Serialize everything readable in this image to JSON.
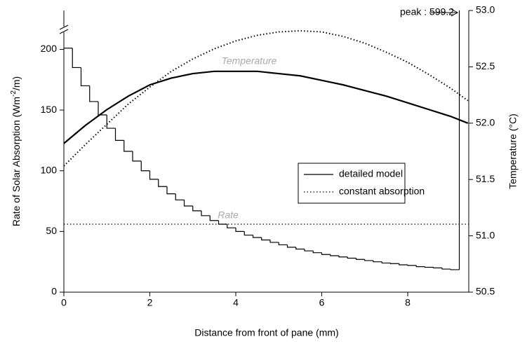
{
  "chart_data": {
    "type": "line",
    "xlabel": "Distance from front of pane (mm)",
    "ylabel": {
      "text": "Rate of Solar Absorption (Wm",
      "sup": "-2",
      "end": "/m)"
    },
    "y2label": "Temperature (°C)",
    "xlim": [
      0,
      9.42
    ],
    "xticks": [
      0,
      2,
      4,
      6,
      8
    ],
    "ylim": [
      0,
      232
    ],
    "yticks": [
      0,
      50,
      100,
      150,
      200
    ],
    "y2lim": [
      50.5,
      53
    ],
    "y2ticks": [
      50.5,
      {
        "value": 51,
        "label": "51.0"
      },
      51.5,
      {
        "value": 52,
        "label": "52.0"
      },
      52.5,
      {
        "value": 53,
        "label": "53.0"
      }
    ],
    "color": "#000000",
    "series": [
      {
        "name": "detailed model",
        "dash": "solid",
        "rate": {
          "bins": [
            0,
            0.2,
            0.4,
            0.6,
            0.8,
            1,
            1.2,
            1.4,
            1.6,
            1.8,
            2,
            2.2,
            2.4,
            2.6,
            2.8,
            3,
            3.2,
            3.4,
            3.6,
            3.8,
            4,
            4.2,
            4.4,
            4.6,
            4.8,
            5,
            5.2,
            5.4,
            5.6,
            5.8,
            6,
            6.2,
            6.4,
            6.6,
            6.8,
            7,
            7.2,
            7.4,
            7.6,
            7.8,
            8,
            8.2,
            8.4,
            8.6,
            8.8,
            9,
            9.2,
            9.4
          ],
          "values": [
            201,
            185,
            170,
            157,
            146,
            135,
            125,
            116,
            108,
            100,
            93,
            87,
            81,
            76,
            71,
            67,
            63,
            59,
            56,
            53,
            50,
            47,
            45,
            43,
            41,
            39,
            37,
            35.5,
            34,
            32.5,
            31,
            30,
            29,
            28,
            27,
            26,
            25,
            24,
            23.5,
            22.5,
            22,
            21,
            20.5,
            20,
            19,
            18.5,
            599.2
          ]
        },
        "temperature": {
          "axis": "y2",
          "x": [
            0,
            0.5,
            1,
            1.5,
            2,
            2.5,
            3,
            3.5,
            4,
            4.5,
            5,
            5.5,
            6,
            6.5,
            7,
            7.5,
            8,
            8.5,
            9,
            9.4
          ],
          "values": [
            51.82,
            51.98,
            52.12,
            52.24,
            52.34,
            52.4,
            52.44,
            52.46,
            52.46,
            52.46,
            52.44,
            52.42,
            52.38,
            52.34,
            52.29,
            52.24,
            52.18,
            52.12,
            52.06,
            52.0
          ]
        }
      },
      {
        "name": "constant absorption",
        "dash": "dotted",
        "rate": {
          "value": 56
        },
        "temperature": {
          "axis": "y2",
          "x": [
            0,
            0.5,
            1,
            1.5,
            2,
            2.5,
            3,
            3.5,
            4,
            4.5,
            5,
            5.5,
            6,
            6.5,
            7,
            7.5,
            8,
            8.5,
            9,
            9.4
          ],
          "values": [
            51.62,
            51.81,
            51.99,
            52.17,
            52.32,
            52.46,
            52.57,
            52.66,
            52.73,
            52.78,
            52.81,
            52.82,
            52.81,
            52.77,
            52.71,
            52.63,
            52.54,
            52.43,
            52.31,
            52.2
          ]
        }
      }
    ],
    "annotations": {
      "temperature": "Temperature",
      "rate": "Rate",
      "peak": "peak : 599.2"
    }
  }
}
